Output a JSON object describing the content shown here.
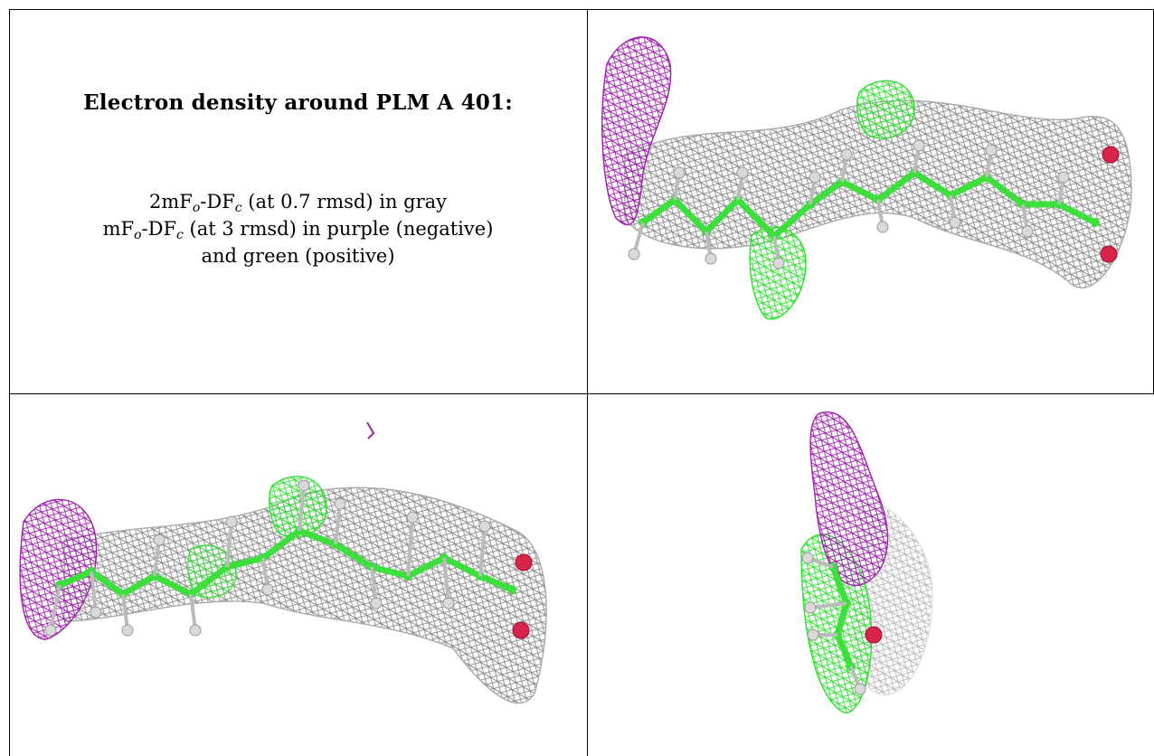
{
  "caption": {
    "title": "Electron density around PLM A 401:",
    "line1": {
      "a": "2mF",
      "sub1": "o",
      "b": "-DF",
      "sub2": "c",
      "c": " (at 0.7 rmsd) in gray"
    },
    "line2": {
      "a": "mF",
      "sub1": "o",
      "b": "-DF",
      "sub2": "c",
      "c": " (at 3 rmsd) in purple (negative)"
    },
    "line3": "and green (positive)"
  },
  "colors": {
    "mesh_2fofc": "#8a8a8a",
    "mesh_negative": "#a020b0",
    "mesh_positive": "#2fe02f",
    "carbon": "#3ddf3d",
    "hydrogen": "#d9d9d9",
    "oxygen": "#d8244a"
  },
  "panels": [
    {
      "name": "view-1",
      "mesh": [
        "2mFo-DFc",
        "negative",
        "positive"
      ]
    },
    {
      "name": "view-2",
      "mesh": [
        "2mFo-DFc",
        "negative",
        "positive"
      ]
    },
    {
      "name": "view-3",
      "mesh": [
        "2mFo-DFc",
        "negative",
        "positive"
      ]
    }
  ]
}
